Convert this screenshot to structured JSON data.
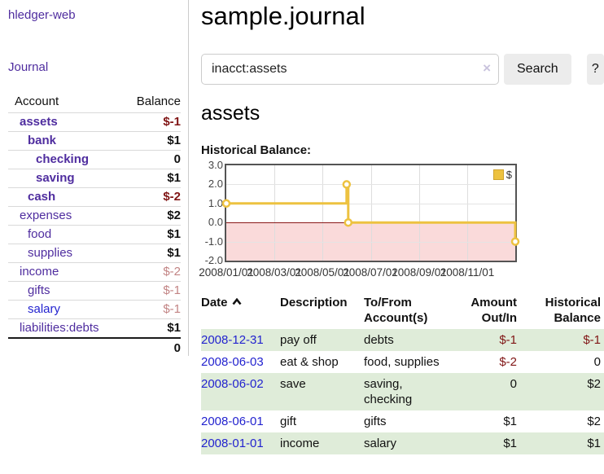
{
  "brand": "hledger-web",
  "sidebar": {
    "nav_journal": "Journal",
    "col_account": "Account",
    "col_balance": "Balance",
    "accounts": [
      {
        "name": "assets",
        "balance": "$-1",
        "classes": "d1 strong neg"
      },
      {
        "name": "bank",
        "balance": "$1",
        "classes": "d2 strong"
      },
      {
        "name": "checking",
        "balance": "0",
        "classes": "d3 strong"
      },
      {
        "name": "saving",
        "balance": "$1",
        "classes": "d3 strong"
      },
      {
        "name": "cash",
        "balance": "$-2",
        "classes": "d2 strong neg"
      },
      {
        "name": "expenses",
        "balance": "$2",
        "classes": "d1"
      },
      {
        "name": "food",
        "balance": "$1",
        "classes": "d2"
      },
      {
        "name": "supplies",
        "balance": "$1",
        "classes": "d2"
      },
      {
        "name": "income",
        "balance": "$-2",
        "classes": "d1 negsoft"
      },
      {
        "name": "gifts",
        "balance": "$-1",
        "classes": "d2 negsoft"
      },
      {
        "name": "salary",
        "balance": "$-1",
        "classes": "d2 negsoft bluelink"
      },
      {
        "name": "liabilities:debts",
        "balance": "$1",
        "classes": "d1"
      }
    ],
    "total": "0"
  },
  "main": {
    "title": "sample.journal",
    "search": {
      "value": "inacct:assets",
      "clear": "×",
      "submit": "Search",
      "help": "?"
    },
    "account_heading": "assets",
    "chart_label": "Historical Balance:"
  },
  "register": {
    "headers": {
      "date": "Date",
      "description": "Description",
      "accounts": "To/From Account(s)",
      "amount": "Amount Out/In",
      "balance": "Historical Balance"
    },
    "rows": [
      {
        "date": "2008-12-31",
        "description": "pay off",
        "accounts": "debts",
        "amount": "$-1",
        "balance": "$-1",
        "amount_class": "neg",
        "balance_class": "neg"
      },
      {
        "date": "2008-06-03",
        "description": "eat & shop",
        "accounts": "food, supplies",
        "amount": "$-2",
        "balance": "0",
        "amount_class": "neg",
        "balance_class": ""
      },
      {
        "date": "2008-06-02",
        "description": "save",
        "accounts": "saving, checking",
        "amount": "0",
        "balance": "$2",
        "amount_class": "",
        "balance_class": ""
      },
      {
        "date": "2008-06-01",
        "description": "gift",
        "accounts": "gifts",
        "amount": "$1",
        "balance": "$2",
        "amount_class": "",
        "balance_class": ""
      },
      {
        "date": "2008-01-01",
        "description": "income",
        "accounts": "salary",
        "amount": "$1",
        "balance": "$1",
        "amount_class": "",
        "balance_class": ""
      }
    ]
  },
  "chart_data": {
    "type": "line",
    "title": "Historical Balance:",
    "step": true,
    "x_start": "2008-01-01",
    "series": [
      {
        "name": "$",
        "color": "#edc240",
        "points": [
          {
            "x": "2008-01-01",
            "y": 1
          },
          {
            "x": "2008-06-01",
            "y": 2
          },
          {
            "x": "2008-06-03",
            "y": 0
          },
          {
            "x": "2008-12-31",
            "y": -1
          }
        ]
      }
    ],
    "ylim": [
      -2,
      3
    ],
    "ytick_labels": [
      "3.0",
      "2.0",
      "1.0",
      "0.0",
      "-1.0",
      "-2.0"
    ],
    "xticks": [
      "2008/01/01",
      "2008/03/01",
      "2008/05/01",
      "2008/07/01",
      "2008/09/01",
      "2008/11/01"
    ],
    "legend_position": "top-right",
    "grid": true,
    "negative_region_fill": "#fadada",
    "zero_line_color": "#8b1a1a"
  }
}
